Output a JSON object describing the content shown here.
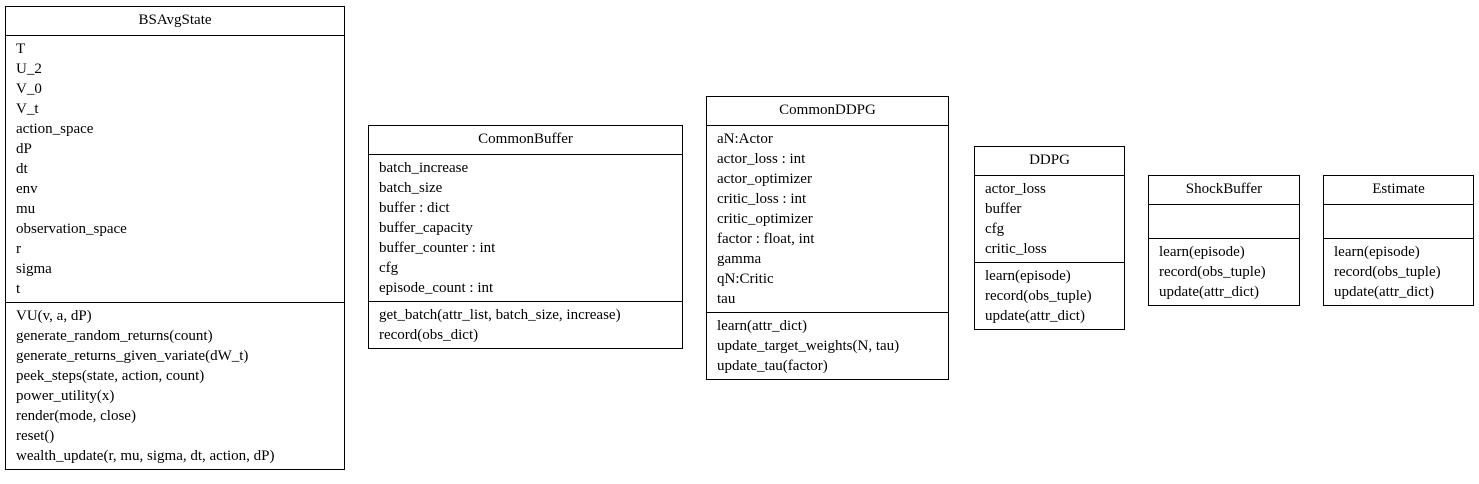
{
  "classes": [
    {
      "name": "BSAvgState",
      "attributes": [
        "T",
        "U_2",
        "V_0",
        "V_t",
        "action_space",
        "dP",
        "dt",
        "env",
        "mu",
        "observation_space",
        "r",
        "sigma",
        "t"
      ],
      "methods": [
        "VU(v, a, dP)",
        "generate_random_returns(count)",
        "generate_returns_given_variate(dW_t)",
        "peek_steps(state, action, count)",
        "power_utility(x)",
        "render(mode, close)",
        "reset()",
        "wealth_update(r, mu, sigma, dt, action, dP)"
      ]
    },
    {
      "name": "CommonBuffer",
      "attributes": [
        "batch_increase",
        "batch_size",
        "buffer : dict",
        "buffer_capacity",
        "buffer_counter : int",
        "cfg",
        "episode_count : int"
      ],
      "methods": [
        "get_batch(attr_list, batch_size, increase)",
        "record(obs_dict)"
      ]
    },
    {
      "name": "CommonDDPG",
      "attributes": [
        "aN:Actor",
        "actor_loss : int",
        "actor_optimizer",
        "critic_loss : int",
        "critic_optimizer",
        "factor : float, int",
        "gamma",
        "qN:Critic",
        "tau"
      ],
      "methods": [
        "learn(attr_dict)",
        "update_target_weights(N, tau)",
        "update_tau(factor)"
      ]
    },
    {
      "name": "DDPG",
      "attributes": [
        "actor_loss",
        "buffer",
        "cfg",
        "critic_loss"
      ],
      "methods": [
        "learn(episode)",
        "record(obs_tuple)",
        "update(attr_dict)"
      ]
    },
    {
      "name": "ShockBuffer",
      "attributes": [],
      "methods": [
        "learn(episode)",
        "record(obs_tuple)",
        "update(attr_dict)"
      ]
    },
    {
      "name": "Estimate",
      "attributes": [],
      "methods": [
        "learn(episode)",
        "record(obs_tuple)",
        "update(attr_dict)"
      ]
    }
  ]
}
